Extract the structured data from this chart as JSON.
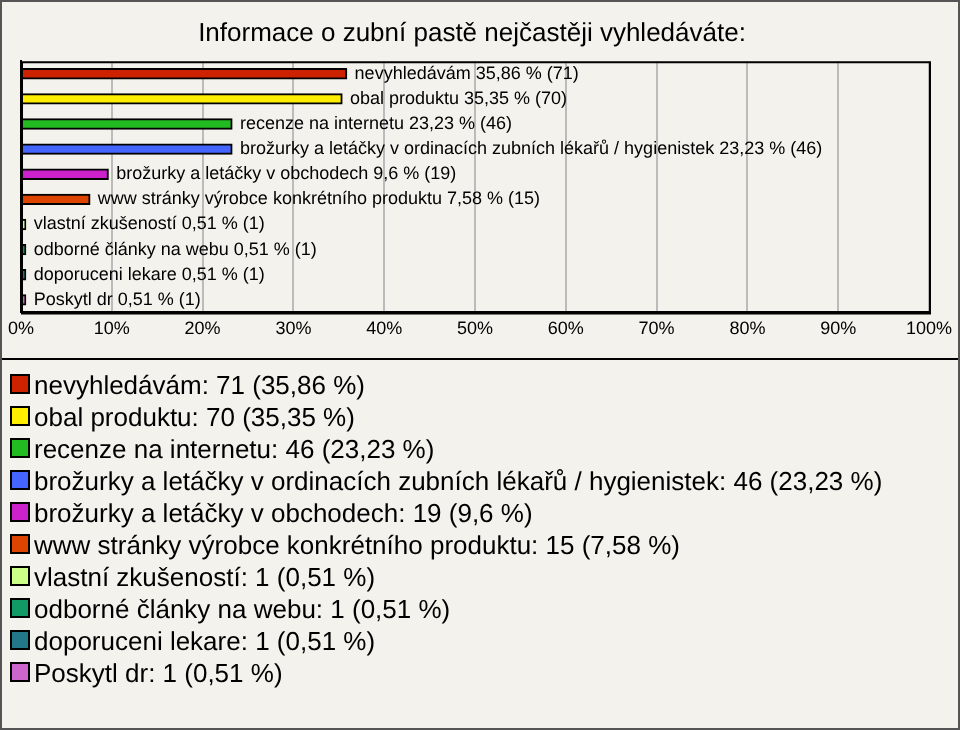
{
  "chart_data": {
    "type": "bar",
    "orientation": "horizontal",
    "title": "Informace o zubní pastě nejčastěji vyhledáváte:",
    "categories": [
      null,
      null,
      null,
      null,
      null,
      null,
      null,
      null,
      null,
      null
    ],
    "xlim": [
      0,
      100
    ],
    "xticks": [
      {
        "value": 0,
        "label": "0%"
      },
      {
        "value": 10,
        "label": "10%"
      },
      {
        "value": 20,
        "label": "20%"
      },
      {
        "value": 30,
        "label": "30%"
      },
      {
        "value": 40,
        "label": "40%"
      },
      {
        "value": 50,
        "label": "50%"
      },
      {
        "value": 60,
        "label": "60%"
      },
      {
        "value": 70,
        "label": "70%"
      },
      {
        "value": 80,
        "label": "80%"
      },
      {
        "value": 90,
        "label": "90%"
      },
      {
        "value": 100,
        "label": "100%"
      }
    ],
    "grid": "x",
    "legend": "bottom",
    "series": [
      {
        "name": "nevyhledávám: 71 (35,86 %)",
        "color": "#cc2200",
        "values": [
          35.86,
          null,
          null,
          null,
          null,
          null,
          null,
          null,
          null,
          null
        ],
        "value_labels": [
          "nevyhledávám 35,86 % (71)",
          null,
          null,
          null,
          null,
          null,
          null,
          null,
          null,
          null
        ]
      },
      {
        "name": "obal produktu: 70 (35,35 %)",
        "color": "#ffee00",
        "values": [
          null,
          35.35,
          null,
          null,
          null,
          null,
          null,
          null,
          null,
          null
        ],
        "value_labels": [
          null,
          "obal produktu 35,35 % (70)",
          null,
          null,
          null,
          null,
          null,
          null,
          null,
          null
        ]
      },
      {
        "name": "recenze na internetu: 46 (23,23 %)",
        "color": "#22bb22",
        "values": [
          null,
          null,
          23.23,
          null,
          null,
          null,
          null,
          null,
          null,
          null
        ],
        "value_labels": [
          null,
          null,
          "recenze na internetu 23,23 % (46)",
          null,
          null,
          null,
          null,
          null,
          null,
          null
        ]
      },
      {
        "name": "brožurky a letáčky v ordinacích zubních lékařů / hygienistek: 46 (23,23 %)",
        "color": "#4466ff",
        "values": [
          null,
          null,
          null,
          23.23,
          null,
          null,
          null,
          null,
          null,
          null
        ],
        "value_labels": [
          null,
          null,
          null,
          "brožurky a letáčky v ordinacích zubních lékařů / hygienistek 23,23 % (46)",
          null,
          null,
          null,
          null,
          null,
          null
        ]
      },
      {
        "name": "brožurky a letáčky v obchodech: 19 (9,6 %)",
        "color": "#cc22cc",
        "values": [
          null,
          null,
          null,
          null,
          9.6,
          null,
          null,
          null,
          null,
          null
        ],
        "value_labels": [
          null,
          null,
          null,
          null,
          "brožurky a letáčky v obchodech 9,6 % (19)",
          null,
          null,
          null,
          null,
          null
        ]
      },
      {
        "name": "www stránky výrobce konkrétního produktu: 15 (7,58 %)",
        "color": "#dd4400",
        "values": [
          null,
          null,
          null,
          null,
          null,
          7.58,
          null,
          null,
          null,
          null
        ],
        "value_labels": [
          null,
          null,
          null,
          null,
          null,
          "www stránky výrobce konkrétního produktu 7,58 % (15)",
          null,
          null,
          null,
          null
        ]
      },
      {
        "name": "vlastní zkušeností: 1 (0,51 %)",
        "color": "#ccff88",
        "values": [
          null,
          null,
          null,
          null,
          null,
          null,
          0.51,
          null,
          null,
          null
        ],
        "value_labels": [
          null,
          null,
          null,
          null,
          null,
          null,
          "vlastní zkušeností 0,51 % (1)",
          null,
          null,
          null
        ]
      },
      {
        "name": "odborné články na webu: 1 (0,51 %)",
        "color": "#119966",
        "values": [
          null,
          null,
          null,
          null,
          null,
          null,
          null,
          0.51,
          null,
          null
        ],
        "value_labels": [
          null,
          null,
          null,
          null,
          null,
          null,
          null,
          "odborné články na webu 0,51 % (1)",
          null,
          null
        ]
      },
      {
        "name": "doporuceni lekare: 1 (0,51 %)",
        "color": "#227788",
        "values": [
          null,
          null,
          null,
          null,
          null,
          null,
          null,
          null,
          0.51,
          null
        ],
        "value_labels": [
          null,
          null,
          null,
          null,
          null,
          null,
          null,
          null,
          "doporuceni lekare 0,51 % (1)",
          null
        ]
      },
      {
        "name": "Poskytl dr: 1 (0,51 %)",
        "color": "#cc66cc",
        "values": [
          null,
          null,
          null,
          null,
          null,
          null,
          null,
          null,
          null,
          0.51
        ],
        "value_labels": [
          null,
          null,
          null,
          null,
          null,
          null,
          null,
          null,
          null,
          "Poskytl dr 0,51 % (1)"
        ]
      }
    ]
  }
}
